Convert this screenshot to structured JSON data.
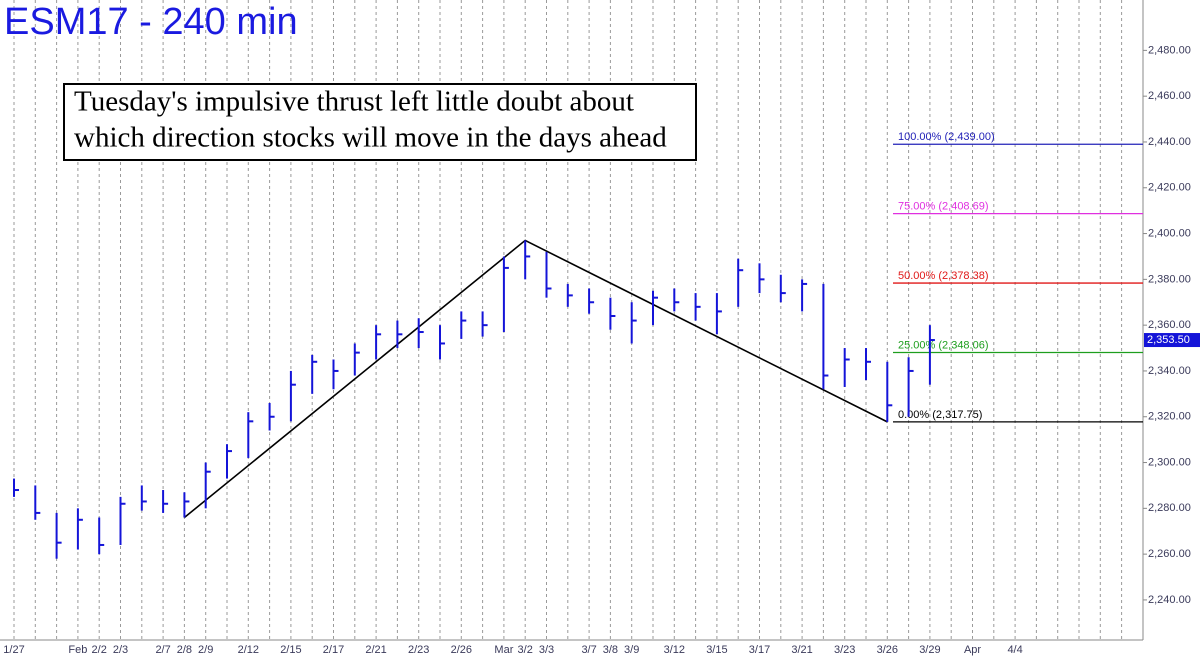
{
  "chart_data": {
    "type": "hlc",
    "title": "ESM17 - 240 min",
    "annotation": [
      "Tuesday's impulsive thrust left little doubt about",
      "which direction stocks will move in the days ahead"
    ],
    "categories": [
      "1/27",
      null,
      null,
      "Feb",
      "2/2",
      "2/3",
      null,
      "2/7",
      "2/8",
      "2/9",
      null,
      "2/12",
      null,
      "2/15",
      null,
      "2/17",
      null,
      "2/21",
      null,
      "2/23",
      null,
      "2/26",
      null,
      "Mar",
      "3/2",
      "3/3",
      null,
      "3/7",
      "3/8",
      "3/9",
      null,
      "3/12",
      null,
      "3/15",
      null,
      "3/17",
      null,
      "3/21",
      null,
      "3/23",
      null,
      "3/26",
      null,
      "3/29",
      null,
      "Apr",
      null,
      "4/4",
      null,
      null,
      null,
      null,
      null
    ],
    "color": "#1414d8",
    "series": [
      {
        "high": [
          2293,
          2290,
          2278,
          2280,
          2276,
          2285,
          2290,
          2288,
          2287,
          2300,
          2308,
          2322,
          2326,
          2340,
          2347,
          2345,
          2352,
          2360,
          2362,
          2363,
          2360,
          2366,
          2366,
          2390,
          2397,
          2392,
          2378,
          2376,
          2372,
          2370,
          2375,
          2376,
          2374,
          2374,
          2389,
          2387,
          2382,
          2380,
          2378,
          2350,
          2350,
          2344,
          2346,
          2360
        ],
        "low": [
          2285,
          2275,
          2258,
          2262,
          2260,
          2264,
          2279,
          2278,
          2276,
          2280,
          2293,
          2302,
          2314,
          2318,
          2330,
          2332,
          2338,
          2345,
          2350,
          2350,
          2345,
          2354,
          2355,
          2357,
          2380,
          2372,
          2368,
          2365,
          2358,
          2352,
          2360,
          2366,
          2362,
          2356,
          2368,
          2374,
          2370,
          2366,
          2332,
          2333,
          2336,
          2317.75,
          2320,
          2334
        ],
        "close": [
          2288,
          2278,
          2265,
          2275,
          2264,
          2282,
          2283,
          2282,
          2283,
          2296,
          2305,
          2318,
          2320,
          2334,
          2344,
          2340,
          2348,
          2356,
          2356,
          2357,
          2352,
          2362,
          2360,
          2385,
          2390,
          2376,
          2373,
          2370,
          2364,
          2362,
          2372,
          2370,
          2368,
          2366,
          2384,
          2380,
          2374,
          2378,
          2338,
          2345,
          2344,
          2325,
          2340,
          2353.5
        ]
      }
    ],
    "trendline": {
      "x": [
        "2/8",
        "3/2",
        "3/26"
      ],
      "values": [
        2276,
        2397,
        2317.75
      ],
      "color": "#000000"
    },
    "levels": [
      {
        "value": 2439,
        "label": "100.00% (2,439.00)",
        "color": "#2222b8"
      },
      {
        "value": 2408.69,
        "label": "75.00% (2,408.69)",
        "color": "#e030e0"
      },
      {
        "value": 2378.38,
        "label": "50.00% (2,378.38)",
        "color": "#e01818"
      },
      {
        "value": 2348.06,
        "label": "25.00% (2,348.06)",
        "color": "#1e9e1e"
      },
      {
        "value": 2317.75,
        "label": "0.00% (2,317.75)",
        "color": "#000000"
      }
    ],
    "last_price": {
      "value": 2353.5,
      "label": "2,353.50"
    },
    "ylim": [
      2222.5,
      2502
    ],
    "yticks": [
      {
        "value": 2240,
        "label": "2,240.00"
      },
      {
        "value": 2260,
        "label": "2,260.00"
      },
      {
        "value": 2280,
        "label": "2,280.00"
      },
      {
        "value": 2300,
        "label": "2,300.00"
      },
      {
        "value": 2320,
        "label": "2,320.00"
      },
      {
        "value": 2340,
        "label": "2,340.00"
      },
      {
        "value": 2360,
        "label": "2,360.00"
      },
      {
        "value": 2380,
        "label": "2,380.00"
      },
      {
        "value": 2400,
        "label": "2,400.00"
      },
      {
        "value": 2420,
        "label": "2,420.00"
      },
      {
        "value": 2440,
        "label": "2,440.00"
      },
      {
        "value": 2460,
        "label": "2,460.00"
      },
      {
        "value": 2480,
        "label": "2,480.00"
      }
    ],
    "grid": true
  }
}
